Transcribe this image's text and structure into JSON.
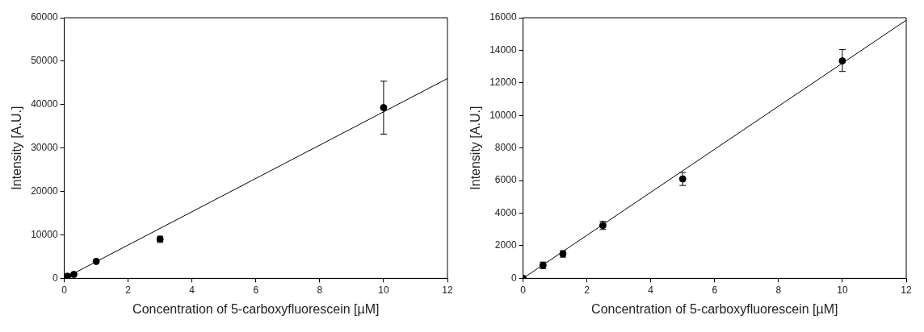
{
  "chart_data": [
    {
      "type": "scatter",
      "xlabel": "Concentration of 5-carboxyfluorescein [µM]",
      "ylabel": "Intensity [A.U.]",
      "xlim": [
        0,
        12
      ],
      "ylim": [
        0,
        60000
      ],
      "xticks": [
        0,
        2,
        4,
        6,
        8,
        10,
        12
      ],
      "yticks": [
        0,
        10000,
        20000,
        30000,
        40000,
        50000,
        60000
      ],
      "grid": false,
      "series": [
        {
          "type": "scatter",
          "marker": "circle",
          "color": "#000000",
          "x": [
            0.1,
            0.3,
            1,
            3,
            10
          ],
          "values": [
            500,
            900,
            3900,
            9000,
            39300
          ],
          "errors": [
            null,
            null,
            null,
            700,
            [
              33200,
              45400
            ]
          ]
        },
        {
          "type": "line",
          "marker": "none",
          "color": "#000000",
          "x": [
            0,
            12
          ],
          "values": [
            0,
            46000
          ]
        }
      ]
    },
    {
      "type": "scatter",
      "xlabel": "Concentration of 5-carboxyfluorescein [µM]",
      "ylabel": "Intensity [A.U.]",
      "xlim": [
        0,
        12
      ],
      "ylim": [
        0,
        16000
      ],
      "xticks": [
        0,
        2,
        4,
        6,
        8,
        10,
        12
      ],
      "yticks": [
        0,
        2000,
        4000,
        6000,
        8000,
        10000,
        12000,
        14000,
        16000
      ],
      "grid": false,
      "series": [
        {
          "type": "scatter",
          "marker": "circle",
          "color": "#000000",
          "x": [
            0,
            0.625,
            1.25,
            2.5,
            5,
            10
          ],
          "values": [
            0,
            800,
            1500,
            3250,
            6100,
            13350
          ],
          "errors": [
            null,
            200,
            200,
            250,
            [
              5700,
              6500
            ],
            [
              12700,
              14050
            ]
          ]
        },
        {
          "type": "line",
          "marker": "none",
          "color": "#000000",
          "x": [
            0,
            12
          ],
          "values": [
            0,
            15850
          ]
        }
      ]
    }
  ]
}
